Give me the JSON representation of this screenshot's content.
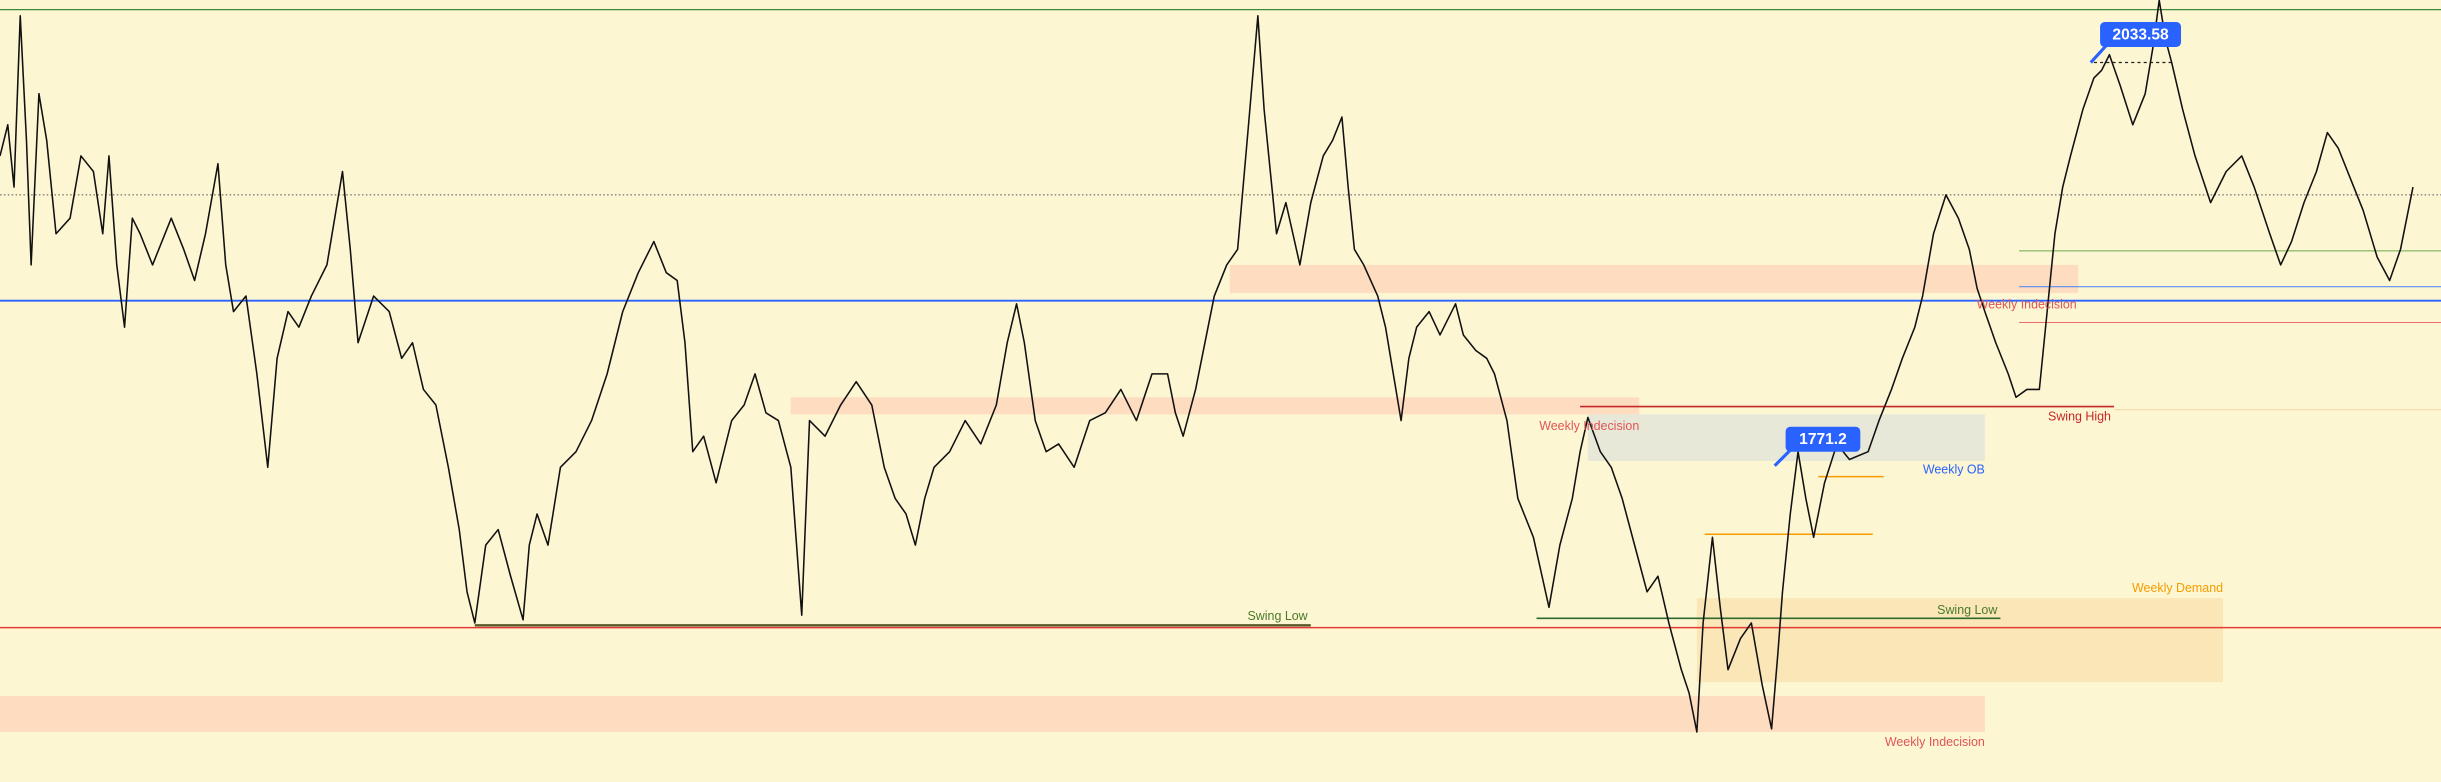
{
  "zones": [
    {
      "label": "Weekly Indecision"
    },
    {
      "label": "Weekly Indecision"
    },
    {
      "label": "Weekly OB"
    },
    {
      "label": "Weekly Indecision"
    },
    {
      "label": "Weekly Demand"
    }
  ],
  "levels": [
    {
      "label": "Swing Low"
    },
    {
      "label": "Swing Low"
    },
    {
      "label": "Swing High"
    }
  ],
  "price_tags": [
    "2033.58",
    "1771.2"
  ]
}
